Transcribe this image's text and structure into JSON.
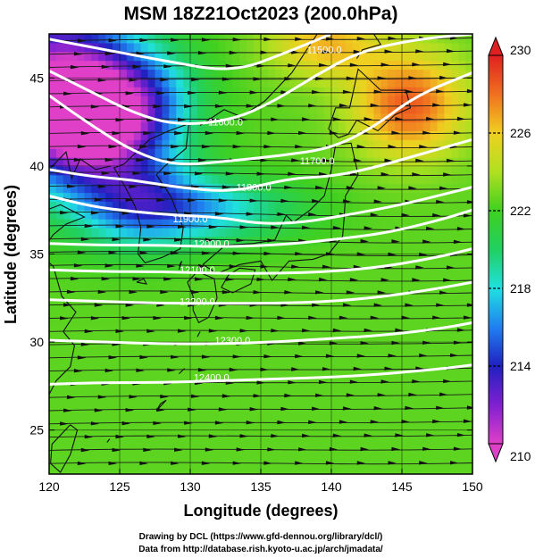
{
  "chart_data": {
    "type": "heatmap",
    "title": "MSM 18Z21Oct2023 (200.0hPa)",
    "xlabel": "Longitude (degrees)",
    "ylabel": "Latitude  (degrees)",
    "xlim": [
      120,
      150
    ],
    "ylim": [
      22.5,
      47.5
    ],
    "xticks": [
      120,
      125,
      130,
      135,
      140,
      145,
      150
    ],
    "yticks": [
      25,
      30,
      35,
      40,
      45
    ],
    "colorbar": {
      "min": 210,
      "max": 230,
      "ticks": [
        210,
        214,
        218,
        222,
        226,
        230
      ],
      "stops": [
        {
          "v": 210,
          "c": "#e040c8"
        },
        {
          "v": 212,
          "c": "#8020d0"
        },
        {
          "v": 214,
          "c": "#2020c0"
        },
        {
          "v": 216,
          "c": "#2080f0"
        },
        {
          "v": 218,
          "c": "#20e0e0"
        },
        {
          "v": 220,
          "c": "#20d060"
        },
        {
          "v": 222,
          "c": "#40d020"
        },
        {
          "v": 224,
          "c": "#b0e020"
        },
        {
          "v": 226,
          "c": "#f0d020"
        },
        {
          "v": 228,
          "c": "#f07020"
        },
        {
          "v": 230,
          "c": "#e02020"
        }
      ]
    },
    "temperature_field": {
      "background": 222.5,
      "anomalies": [
        {
          "lon": 120.5,
          "lat": 44.5,
          "value": 210.5,
          "rx": 5.5,
          "ry": 5
        },
        {
          "lon": 123.5,
          "lat": 42.5,
          "value": 213,
          "rx": 4.5,
          "ry": 3
        },
        {
          "lon": 126.5,
          "lat": 38,
          "value": 216,
          "rx": 4.5,
          "ry": 2.5
        },
        {
          "lon": 132,
          "lat": 37.5,
          "value": 218.5,
          "rx": 6,
          "ry": 1.8
        },
        {
          "lon": 127,
          "lat": 44,
          "value": 219,
          "rx": 4,
          "ry": 3
        },
        {
          "lon": 145.5,
          "lat": 43.5,
          "value": 228.5,
          "rx": 4,
          "ry": 3
        },
        {
          "lon": 139.5,
          "lat": 47,
          "value": 226.5,
          "rx": 4,
          "ry": 2
        }
      ]
    },
    "wind": {
      "u": 1.0,
      "v": -0.05
    },
    "contours": [
      {
        "label": "11500.0",
        "points": [
          [
            120,
            47.2
          ],
          [
            124,
            46.6
          ],
          [
            128,
            46
          ],
          [
            133,
            45.3
          ],
          [
            137,
            46.5
          ],
          [
            140,
            47.5
          ]
        ]
      },
      {
        "label": "11600.0",
        "points": [
          [
            120,
            45.4
          ],
          [
            123,
            44.2
          ],
          [
            126,
            43
          ],
          [
            129,
            42.3
          ],
          [
            133,
            42.6
          ],
          [
            136,
            43.7
          ],
          [
            139,
            45.2
          ],
          [
            142,
            46.5
          ],
          [
            146,
            47.2
          ],
          [
            150,
            47.5
          ]
        ]
      },
      {
        "label": "11700.0",
        "points": [
          [
            120,
            44
          ],
          [
            123,
            42.3
          ],
          [
            126,
            40.8
          ],
          [
            129,
            40
          ],
          [
            133,
            40.3
          ],
          [
            136.5,
            40.6
          ],
          [
            140,
            41
          ],
          [
            143,
            42.2
          ],
          [
            146,
            44
          ],
          [
            150,
            45.3
          ]
        ]
      },
      {
        "label": "11800.0",
        "points": [
          [
            120,
            39.8
          ],
          [
            123,
            39.4
          ],
          [
            126,
            39.2
          ],
          [
            129,
            38.8
          ],
          [
            133,
            38.5
          ],
          [
            137,
            39.3
          ],
          [
            140,
            39.4
          ],
          [
            143,
            39.9
          ],
          [
            146,
            40.6
          ],
          [
            150,
            41.5
          ]
        ]
      },
      {
        "label": "11900.0",
        "points": [
          [
            120,
            38.3
          ],
          [
            123,
            37.7
          ],
          [
            126,
            37.4
          ],
          [
            129,
            37.2
          ],
          [
            132,
            37.1
          ],
          [
            135,
            36.7
          ],
          [
            138,
            36.8
          ],
          [
            141,
            37.2
          ],
          [
            145,
            37.8
          ],
          [
            150,
            38.8
          ]
        ]
      },
      {
        "label": "12000.0",
        "points": [
          [
            120,
            35.6
          ],
          [
            124,
            35.5
          ],
          [
            128,
            35.5
          ],
          [
            132,
            35.4
          ],
          [
            136,
            35.5
          ],
          [
            140,
            35.8
          ],
          [
            144,
            36.2
          ],
          [
            148,
            37
          ],
          [
            150,
            37.5
          ]
        ]
      },
      {
        "label": "12100.0",
        "points": [
          [
            120,
            34.1
          ],
          [
            124,
            34
          ],
          [
            128,
            34
          ],
          [
            132,
            33.9
          ],
          [
            136,
            33.9
          ],
          [
            140,
            34
          ],
          [
            144,
            34.3
          ],
          [
            148,
            34.9
          ],
          [
            150,
            35.3
          ]
        ]
      },
      {
        "label": "12200.0",
        "points": [
          [
            120,
            32.4
          ],
          [
            124,
            32.3
          ],
          [
            128,
            32.2
          ],
          [
            132,
            32.2
          ],
          [
            136,
            32.2
          ],
          [
            140,
            32.3
          ],
          [
            144,
            32.6
          ],
          [
            148,
            33.1
          ],
          [
            150,
            33.4
          ]
        ]
      },
      {
        "label": "12300.0",
        "points": [
          [
            120,
            30.1
          ],
          [
            124,
            30
          ],
          [
            128,
            29.9
          ],
          [
            132,
            29.9
          ],
          [
            136,
            30
          ],
          [
            140,
            30.2
          ],
          [
            144,
            30.4
          ],
          [
            148,
            30.8
          ],
          [
            150,
            31.1
          ]
        ]
      },
      {
        "label": "12400.0",
        "points": [
          [
            120,
            27.6
          ],
          [
            124,
            27.7
          ],
          [
            128,
            27.7
          ],
          [
            132,
            27.8
          ],
          [
            136,
            27.9
          ],
          [
            140,
            28
          ],
          [
            144,
            28.2
          ],
          [
            148,
            28.5
          ],
          [
            150,
            28.7
          ]
        ]
      }
    ],
    "contour_label_positions": [
      {
        "label": "11500.0",
        "lon": 139.5,
        "lat": 46.6
      },
      {
        "label": "11600.0",
        "lon": 132.5,
        "lat": 42.5
      },
      {
        "label": "11700.0",
        "lon": 139,
        "lat": 40.3
      },
      {
        "label": "11800.0",
        "lon": 134.5,
        "lat": 38.8
      },
      {
        "label": "11900.0",
        "lon": 130,
        "lat": 37
      },
      {
        "label": "12000.0",
        "lon": 131.5,
        "lat": 35.6
      },
      {
        "label": "12100.0",
        "lon": 130.5,
        "lat": 34.1
      },
      {
        "label": "12200.0",
        "lon": 130.5,
        "lat": 32.3
      },
      {
        "label": "12300.0",
        "lon": 133,
        "lat": 30.1
      },
      {
        "label": "12400.0",
        "lon": 131.5,
        "lat": 28
      }
    ],
    "coastlines": [
      {
        "name": "hokkaido",
        "points": [
          [
            139.8,
            42.1
          ],
          [
            140.5,
            41.6
          ],
          [
            141.2,
            41.8
          ],
          [
            141.8,
            42.6
          ],
          [
            143.3,
            42.0
          ],
          [
            144.5,
            42.9
          ],
          [
            145.6,
            43.3
          ],
          [
            145.3,
            44.3
          ],
          [
            143.5,
            44.3
          ],
          [
            141.9,
            45.5
          ],
          [
            141.6,
            44.4
          ],
          [
            141.3,
            43.3
          ],
          [
            140.3,
            43.3
          ],
          [
            139.8,
            42.1
          ]
        ]
      },
      {
        "name": "honshu",
        "points": [
          [
            130.9,
            34.4
          ],
          [
            132.5,
            35.5
          ],
          [
            134.5,
            35.6
          ],
          [
            136,
            35.8
          ],
          [
            136.8,
            37.2
          ],
          [
            137.3,
            36.8
          ],
          [
            138.5,
            37.5
          ],
          [
            139.5,
            38.3
          ],
          [
            140,
            39.8
          ],
          [
            140.3,
            41.2
          ],
          [
            141.4,
            41.3
          ],
          [
            141.9,
            39.5
          ],
          [
            141,
            38.3
          ],
          [
            140.9,
            37
          ],
          [
            140.8,
            36
          ],
          [
            139.8,
            35
          ],
          [
            138.7,
            34.7
          ],
          [
            137,
            34.6
          ],
          [
            135.8,
            33.5
          ],
          [
            135,
            34.6
          ],
          [
            133.5,
            34.4
          ],
          [
            131.9,
            33.9
          ],
          [
            130.9,
            34.4
          ]
        ]
      },
      {
        "name": "shikoku",
        "points": [
          [
            132.2,
            33.1
          ],
          [
            133,
            32.8
          ],
          [
            134.3,
            33.3
          ],
          [
            134.6,
            34.1
          ],
          [
            133.5,
            34.2
          ],
          [
            132.7,
            33.8
          ],
          [
            132.2,
            33.1
          ]
        ]
      },
      {
        "name": "kyushu",
        "points": [
          [
            129.8,
            33.4
          ],
          [
            130.5,
            34
          ],
          [
            131.7,
            33.6
          ],
          [
            131.9,
            32.5
          ],
          [
            131.3,
            31.4
          ],
          [
            130.6,
            31.1
          ],
          [
            130.2,
            31.8
          ],
          [
            130.2,
            32.6
          ],
          [
            129.8,
            33.4
          ]
        ]
      },
      {
        "name": "korea",
        "points": [
          [
            126.1,
            37.7
          ],
          [
            126.5,
            36.5
          ],
          [
            126.3,
            35
          ],
          [
            126.8,
            34.5
          ],
          [
            128,
            34.8
          ],
          [
            129.3,
            35.3
          ],
          [
            129.5,
            36.5
          ],
          [
            128.6,
            38.3
          ],
          [
            127.6,
            39.5
          ],
          [
            128.2,
            40
          ],
          [
            129.7,
            41
          ],
          [
            129.9,
            42.4
          ],
          [
            128.5,
            42
          ],
          [
            127.1,
            41.5
          ],
          [
            125.3,
            40.1
          ],
          [
            124.6,
            39.9
          ],
          [
            125.4,
            38.8
          ],
          [
            126.1,
            37.7
          ]
        ]
      },
      {
        "name": "china",
        "points": [
          [
            120,
            26.9
          ],
          [
            119.6,
            26.4
          ],
          [
            120.5,
            27.8
          ],
          [
            121.5,
            28.6
          ],
          [
            121.8,
            29.8
          ],
          [
            121,
            30.6
          ],
          [
            121.9,
            31.7
          ],
          [
            120.9,
            32.6
          ],
          [
            120.3,
            34.3
          ],
          [
            119.3,
            35
          ],
          [
            120.3,
            36.1
          ],
          [
            121.2,
            36.7
          ],
          [
            122.5,
            37.1
          ],
          [
            120.8,
            37.8
          ],
          [
            119.2,
            37.3
          ]
        ]
      },
      {
        "name": "liaodong",
        "points": [
          [
            120,
            39.8
          ],
          [
            121.2,
            40.8
          ],
          [
            121.6,
            39.3
          ],
          [
            122.2,
            40.4
          ],
          [
            123.3,
            39.8
          ],
          [
            124.4,
            40
          ]
        ]
      },
      {
        "name": "taiwan",
        "points": [
          [
            121.5,
            25.3
          ],
          [
            122,
            25
          ],
          [
            121.5,
            23.6
          ],
          [
            120.8,
            22.6
          ],
          [
            120.1,
            23.1
          ],
          [
            120.2,
            24.2
          ],
          [
            121.5,
            25.3
          ]
        ]
      },
      {
        "name": "sakhalin",
        "points": [
          [
            141.8,
            46.1
          ],
          [
            142.2,
            46.6
          ],
          [
            143.5,
            46.9
          ],
          [
            143,
            47.5
          ]
        ]
      },
      {
        "name": "russia-coast",
        "points": [
          [
            130.7,
            42.3
          ],
          [
            132.4,
            43.2
          ],
          [
            133.6,
            42.8
          ],
          [
            135.3,
            43.7
          ],
          [
            137.2,
            45.3
          ],
          [
            138.5,
            46.9
          ],
          [
            139,
            47.5
          ]
        ]
      },
      {
        "name": "jeju",
        "points": [
          [
            126.2,
            33.4
          ],
          [
            126.9,
            33.3
          ],
          [
            126.7,
            33.6
          ],
          [
            126.2,
            33.4
          ]
        ]
      },
      {
        "name": "tsushima",
        "points": [
          [
            129.2,
            34.1
          ],
          [
            129.4,
            34.6
          ],
          [
            129.2,
            34.3
          ]
        ]
      },
      {
        "name": "ryukyu-1",
        "points": [
          [
            127.6,
            26.1
          ],
          [
            128.3,
            26.7
          ],
          [
            127.9,
            26.5
          ],
          [
            127.6,
            26.1
          ]
        ]
      },
      {
        "name": "ryukyu-2",
        "points": [
          [
            129.2,
            28.2
          ],
          [
            129.6,
            28.5
          ]
        ]
      },
      {
        "name": "ryukyu-3",
        "points": [
          [
            124.1,
            24.3
          ],
          [
            124.3,
            24.5
          ]
        ]
      },
      {
        "name": "ryukyu-4",
        "points": [
          [
            130.5,
            30.3
          ],
          [
            130.7,
            30.6
          ]
        ]
      }
    ]
  },
  "credits": {
    "line1": "Drawing by DCL (https://www.gfd-dennou.org/library/dcl/)",
    "line2": "Data from http://database.rish.kyoto-u.ac.jp/arch/jmadata/"
  }
}
